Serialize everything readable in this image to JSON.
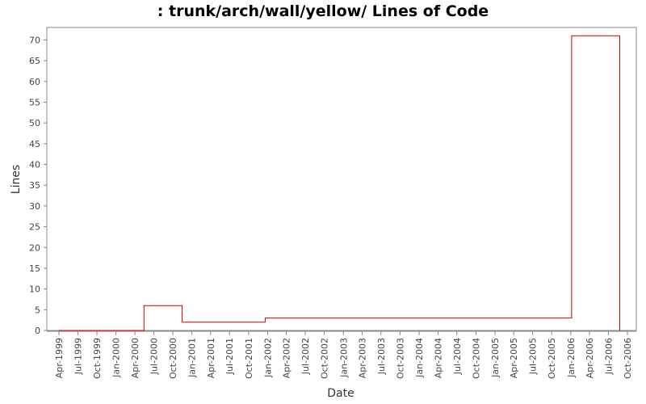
{
  "chart_data": {
    "type": "line",
    "title": ": trunk/arch/wall/yellow/ Lines of Code",
    "xlabel": "Date",
    "ylabel": "Lines",
    "ylim": [
      0,
      73
    ],
    "yticks": [
      0,
      5,
      10,
      15,
      20,
      25,
      30,
      35,
      40,
      45,
      50,
      55,
      60,
      65,
      70
    ],
    "xticks": [
      "Apr-1999",
      "Jul-1999",
      "Oct-1999",
      "Jan-2000",
      "Apr-2000",
      "Jul-2000",
      "Oct-2000",
      "Jan-2001",
      "Apr-2001",
      "Jul-2001",
      "Oct-2001",
      "Jan-2002",
      "Apr-2002",
      "Jul-2002",
      "Oct-2002",
      "Jan-2003",
      "Apr-2003",
      "Jul-2003",
      "Oct-2003",
      "Jan-2004",
      "Apr-2004",
      "Jul-2004",
      "Oct-2004",
      "Jan-2005",
      "Apr-2005",
      "Jul-2005",
      "Oct-2005",
      "Jan-2006",
      "Apr-2006",
      "Jul-2006",
      "Oct-2006"
    ],
    "grid": false,
    "step": true,
    "series": [
      {
        "color": "#cc0000",
        "points": [
          {
            "x": "1999-04-01",
            "y": 0
          },
          {
            "x": "2000-05-15",
            "y": 0
          },
          {
            "x": "2000-05-15",
            "y": 6
          },
          {
            "x": "2000-11-15",
            "y": 6
          },
          {
            "x": "2000-11-15",
            "y": 2
          },
          {
            "x": "2001-12-20",
            "y": 2
          },
          {
            "x": "2001-12-20",
            "y": 3
          },
          {
            "x": "2006-01-05",
            "y": 3
          },
          {
            "x": "2006-01-05",
            "y": 71
          },
          {
            "x": "2006-08-25",
            "y": 71
          },
          {
            "x": "2006-08-25",
            "y": 0
          }
        ]
      }
    ]
  }
}
